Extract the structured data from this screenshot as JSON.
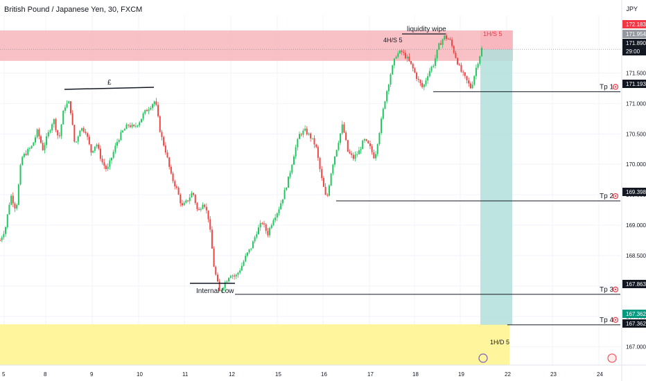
{
  "header": {
    "title": "British Pound / Japanese Yen, 30, FXCM",
    "currency": "JPY"
  },
  "chart_data": {
    "type": "candlestick",
    "symbol": "GBPJPY",
    "timeframe": "30",
    "ylim": [
      166.7,
      172.45
    ],
    "x_ticks": [
      "5",
      "8",
      "9",
      "10",
      "11",
      "12",
      "15",
      "16",
      "17",
      "18",
      "19",
      "22",
      "23",
      "24"
    ],
    "y_ticks": [
      "171.500",
      "171.000",
      "170.500",
      "170.000",
      "169.500",
      "169.000",
      "168.500",
      "168.000",
      "167.500",
      "167.000"
    ],
    "price_labels": [
      {
        "value": 172.183,
        "text": "172.183",
        "bg": "#f23645",
        "color": "#ffffff"
      },
      {
        "value": 171.954,
        "text": "171.954",
        "bg": "#9598a1",
        "color": "#ffffff"
      },
      {
        "value": 171.89,
        "text": "171.890",
        "sub": "29:00",
        "bg": "#131722",
        "color": "#ffffff"
      },
      {
        "value": 171.193,
        "text": "171.193",
        "bg": "#131722",
        "color": "#ffffff"
      },
      {
        "value": 169.398,
        "text": "169.398",
        "bg": "#131722",
        "color": "#ffffff"
      },
      {
        "value": 167.863,
        "text": "167.863",
        "bg": "#131722",
        "color": "#ffffff"
      },
      {
        "value": 167.362,
        "text": "167.362",
        "bg": "#089981",
        "color": "#ffffff"
      },
      {
        "value": 167.362,
        "text": "167.362",
        "bg": "#131722",
        "color": "#ffffff"
      }
    ],
    "price_path": [
      [
        170.5,
        168.75
      ],
      [
        170.52,
        168.95
      ],
      [
        170.54,
        169.5
      ],
      [
        170.56,
        169.25
      ],
      [
        170.58,
        170.1
      ],
      [
        170.6,
        170.2
      ],
      [
        170.62,
        170.3
      ],
      [
        170.64,
        170.55
      ],
      [
        170.66,
        170.25
      ],
      [
        170.68,
        170.5
      ],
      [
        170.7,
        170.75
      ],
      [
        170.72,
        170.4
      ],
      [
        170.74,
        170.95
      ],
      [
        170.76,
        171.02
      ],
      [
        170.78,
        170.3
      ],
      [
        170.8,
        170.6
      ],
      [
        170.82,
        170.55
      ],
      [
        170.84,
        170.2
      ],
      [
        170.86,
        170.35
      ],
      [
        170.88,
        170.05
      ],
      [
        170.9,
        169.9
      ],
      [
        170.92,
        170.15
      ],
      [
        170.94,
        170.4
      ],
      [
        170.96,
        170.55
      ],
      [
        170.98,
        170.65
      ],
      [
        171,
        170.6
      ],
      [
        171.02,
        170.7
      ],
      [
        171.04,
        170.85
      ],
      [
        171.06,
        170.95
      ],
      [
        171.08,
        171.05
      ],
      [
        171.1,
        170.5
      ],
      [
        171.12,
        170.2
      ],
      [
        171.14,
        169.8
      ],
      [
        171.16,
        169.6
      ],
      [
        171.18,
        169.3
      ],
      [
        171.2,
        169.4
      ],
      [
        171.22,
        169.55
      ],
      [
        171.24,
        169.2
      ],
      [
        171.26,
        169.4
      ],
      [
        171.28,
        169.1
      ],
      [
        171.3,
        168.3
      ],
      [
        171.32,
        167.9
      ],
      [
        171.34,
        168.05
      ],
      [
        171.36,
        168.2
      ],
      [
        171.38,
        168.15
      ],
      [
        171.4,
        168.3
      ],
      [
        171.42,
        168.5
      ],
      [
        171.44,
        168.65
      ],
      [
        171.46,
        168.9
      ],
      [
        171.48,
        169.05
      ],
      [
        171.5,
        168.85
      ],
      [
        171.52,
        169.1
      ],
      [
        171.54,
        169.25
      ],
      [
        171.56,
        169.5
      ],
      [
        171.58,
        169.8
      ],
      [
        171.6,
        170.2
      ],
      [
        171.62,
        170.5
      ],
      [
        171.64,
        170.55
      ],
      [
        171.66,
        170.45
      ],
      [
        171.68,
        170.3
      ],
      [
        171.7,
        169.8
      ],
      [
        171.72,
        169.4
      ],
      [
        171.74,
        169.95
      ],
      [
        171.76,
        170.3
      ],
      [
        171.78,
        170.65
      ],
      [
        171.8,
        170.2
      ],
      [
        171.82,
        170.1
      ],
      [
        171.84,
        170.2
      ],
      [
        171.86,
        170.4
      ],
      [
        171.88,
        170.3
      ],
      [
        171.9,
        170.1
      ],
      [
        171.92,
        170.6
      ],
      [
        171.94,
        171.1
      ],
      [
        171.96,
        171.5
      ],
      [
        171.98,
        171.8
      ],
      [
        172,
        171.85
      ],
      [
        172.02,
        171.75
      ],
      [
        172.04,
        171.6
      ],
      [
        172.06,
        171.4
      ],
      [
        172.08,
        171.25
      ],
      [
        172.1,
        171.5
      ],
      [
        172.12,
        171.65
      ],
      [
        172.14,
        171.95
      ],
      [
        172.16,
        172.1
      ],
      [
        172.18,
        172.05
      ],
      [
        172.2,
        171.8
      ],
      [
        172.22,
        171.55
      ],
      [
        172.24,
        171.4
      ],
      [
        172.26,
        171.25
      ],
      [
        172.28,
        171.6
      ],
      [
        172.3,
        171.9
      ]
    ],
    "zones": [
      {
        "from": 171.7,
        "to": 172.2,
        "color": "#f7b6bc"
      },
      {
        "from": 166.5,
        "to": 167.37,
        "color": "#fff59d"
      },
      {
        "from": 167.362,
        "to": 171.89,
        "color": "#b2dfdb"
      },
      {
        "from": 171.89,
        "to": 172.2,
        "color": "#f7b6bc"
      }
    ],
    "levels": [
      {
        "value": 171.193,
        "label": "Tp 1"
      },
      {
        "value": 169.398,
        "label": "Tp 2"
      },
      {
        "value": 167.863,
        "label": "Tp 3"
      },
      {
        "value": 167.362,
        "label": "Tp 4"
      }
    ],
    "annotations": [
      {
        "text": "£",
        "price": 171.1
      },
      {
        "text": "Internal Low",
        "price": 167.88
      },
      {
        "text": "liquidity wipe",
        "price": 172.1
      },
      {
        "text": "4H/S  5",
        "price": 171.95
      },
      {
        "text": "1H/S 5",
        "price": 172.05
      },
      {
        "text": "1H/D 5",
        "price": 166.95
      }
    ]
  },
  "colors": {
    "up": "#089981",
    "down": "#f23645",
    "wick_up": "#26a69a",
    "grid": "#f0f3fa",
    "axis_text": "#131722",
    "line": "#131722"
  }
}
